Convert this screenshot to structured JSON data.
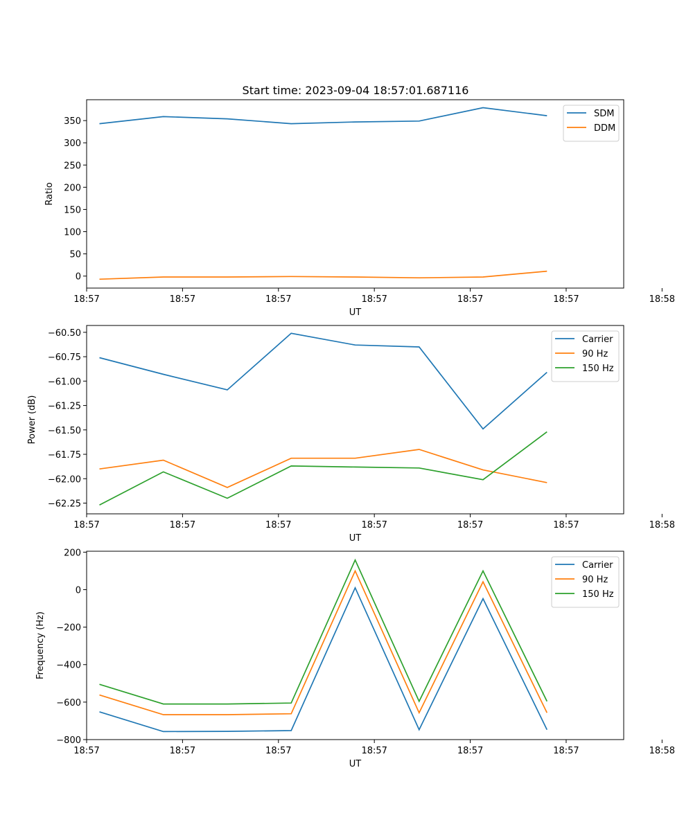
{
  "figure_title": "Start time: 2023-09-04 18:57:01.687116",
  "chart_data": [
    {
      "type": "line",
      "title": "Start time: 2023-09-04 18:57:01.687116",
      "xlabel": "UT",
      "ylabel": "Ratio",
      "x": [
        1,
        2,
        3,
        4,
        5,
        6,
        7,
        8
      ],
      "xlim": [
        0.8,
        9.2
      ],
      "xticks": [
        0.8,
        2.3,
        3.8,
        5.3,
        6.8,
        8.3,
        9.8
      ],
      "xtick_labels": [
        "18:57",
        "18:57",
        "18:57",
        "18:57",
        "18:57",
        "18:57",
        "18:58"
      ],
      "ylim": [
        -27,
        397
      ],
      "yticks": [
        0,
        50,
        100,
        150,
        200,
        250,
        300,
        350
      ],
      "ytick_labels": [
        "0",
        "50",
        "100",
        "150",
        "200",
        "250",
        "300",
        "350"
      ],
      "legend_position": "top-right",
      "series": [
        {
          "name": "SDM",
          "color": "#1f77b4",
          "values": [
            343,
            359,
            354,
            343,
            347,
            349,
            379,
            361
          ]
        },
        {
          "name": "DDM",
          "color": "#ff7f0e",
          "values": [
            -7,
            -2,
            -2,
            -1,
            -2,
            -4,
            -2,
            11
          ]
        }
      ]
    },
    {
      "type": "line",
      "title": "",
      "xlabel": "UT",
      "ylabel": "Power (dB)",
      "x": [
        1,
        2,
        3,
        4,
        5,
        6,
        7,
        8
      ],
      "xlim": [
        0.8,
        9.2
      ],
      "xticks": [
        0.8,
        2.3,
        3.8,
        5.3,
        6.8,
        8.3,
        9.8
      ],
      "xtick_labels": [
        "18:57",
        "18:57",
        "18:57",
        "18:57",
        "18:57",
        "18:57",
        "18:58"
      ],
      "ylim": [
        -62.36,
        -60.43
      ],
      "yticks": [
        -62.25,
        -62.0,
        -61.75,
        -61.5,
        -61.25,
        -61.0,
        -60.75,
        -60.5
      ],
      "ytick_labels": [
        "−62.25",
        "−62.00",
        "−61.75",
        "−61.50",
        "−61.25",
        "−61.00",
        "−60.75",
        "−60.50"
      ],
      "legend_position": "top-right",
      "series": [
        {
          "name": "Carrier",
          "color": "#1f77b4",
          "values": [
            -60.76,
            -60.93,
            -61.09,
            -60.51,
            -60.63,
            -60.65,
            -61.49,
            -60.91
          ]
        },
        {
          "name": "90 Hz",
          "color": "#ff7f0e",
          "values": [
            -61.9,
            -61.81,
            -62.09,
            -61.79,
            -61.79,
            -61.7,
            -61.91,
            -62.04
          ]
        },
        {
          "name": "150 Hz",
          "color": "#2ca02c",
          "values": [
            -62.27,
            -61.93,
            -62.2,
            -61.87,
            -61.88,
            -61.89,
            -62.01,
            -61.52
          ]
        }
      ]
    },
    {
      "type": "line",
      "title": "",
      "xlabel": "UT",
      "ylabel": "Frequency (Hz)",
      "x": [
        1,
        2,
        3,
        4,
        5,
        6,
        7,
        8
      ],
      "xlim": [
        0.8,
        9.2
      ],
      "xticks": [
        0.8,
        2.3,
        3.8,
        5.3,
        6.8,
        8.3,
        9.8
      ],
      "xtick_labels": [
        "18:57",
        "18:57",
        "18:57",
        "18:57",
        "18:57",
        "18:57",
        "18:58"
      ],
      "ylim": [
        -800,
        205
      ],
      "yticks": [
        -800,
        -600,
        -400,
        -200,
        0,
        200
      ],
      "ytick_labels": [
        "−800",
        "−600",
        "−400",
        "−200",
        "0",
        "200"
      ],
      "legend_position": "top-right",
      "series": [
        {
          "name": "Carrier",
          "color": "#1f77b4",
          "values": [
            -652,
            -757,
            -756,
            -752,
            10,
            -747,
            -48,
            -747
          ]
        },
        {
          "name": "90 Hz",
          "color": "#ff7f0e",
          "values": [
            -562,
            -667,
            -667,
            -662,
            100,
            -657,
            42,
            -657
          ]
        },
        {
          "name": "150 Hz",
          "color": "#2ca02c",
          "values": [
            -505,
            -610,
            -610,
            -605,
            158,
            -596,
            100,
            -596
          ]
        }
      ]
    }
  ]
}
